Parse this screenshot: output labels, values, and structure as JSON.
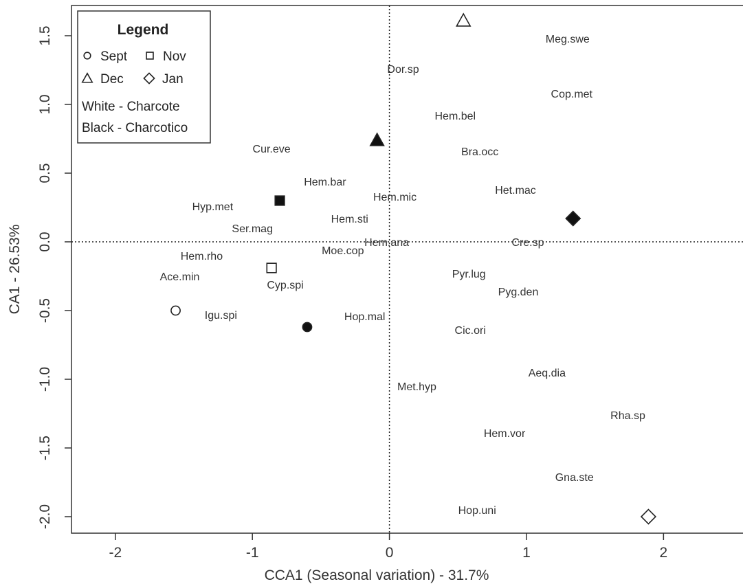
{
  "chart_data": {
    "type": "scatter",
    "xlabel": "CCA1 (Seasonal variation) - 31.7%",
    "ylabel": "CA1 - 26.53%",
    "xlim": [
      -2.32,
      2.58
    ],
    "ylim": [
      -2.12,
      1.72
    ],
    "x_ticks": [
      "-2",
      "-1",
      "0",
      "1",
      "2"
    ],
    "y_ticks": [
      "-2.0",
      "-1.5",
      "-1.0",
      "-0.5",
      "0.0",
      "0.5",
      "1.0",
      "1.5"
    ],
    "reference_lines": {
      "x": 0,
      "y": 0,
      "style": "dotted"
    },
    "legend": {
      "title": "Legend",
      "position": "top-left",
      "entries": [
        {
          "label": "Sept",
          "shape": "circle"
        },
        {
          "label": "Nov",
          "shape": "square"
        },
        {
          "label": "Dec",
          "shape": "triangle"
        },
        {
          "label": "Jan",
          "shape": "diamond"
        }
      ],
      "notes": [
        "White - Charcote",
        "Black - Charcotico"
      ]
    },
    "colors": {
      "white_fill": "#ffffff",
      "black_fill": "#111111",
      "stroke": "#222222"
    },
    "sites": [
      {
        "month": "Sept",
        "site": "Charcote",
        "shape": "circle",
        "fill": "white",
        "x": -1.56,
        "y": -0.5
      },
      {
        "month": "Sept",
        "site": "Charcotico",
        "shape": "circle",
        "fill": "black",
        "x": -0.6,
        "y": -0.62
      },
      {
        "month": "Nov",
        "site": "Charcote",
        "shape": "square",
        "fill": "white",
        "x": -0.86,
        "y": -0.19
      },
      {
        "month": "Nov",
        "site": "Charcotico",
        "shape": "square",
        "fill": "black",
        "x": -0.8,
        "y": 0.3
      },
      {
        "month": "Dec",
        "site": "Charcote",
        "shape": "triangle",
        "fill": "white",
        "x": 0.54,
        "y": 1.61
      },
      {
        "month": "Dec",
        "site": "Charcotico",
        "shape": "triangle",
        "fill": "black",
        "x": -0.09,
        "y": 0.74
      },
      {
        "month": "Jan",
        "site": "Charcote",
        "shape": "diamond",
        "fill": "white",
        "x": 1.89,
        "y": -2.0
      },
      {
        "month": "Jan",
        "site": "Charcotico",
        "shape": "diamond",
        "fill": "black",
        "x": 1.34,
        "y": 0.17
      }
    ],
    "species": [
      {
        "label": "Meg.swe",
        "x": 1.3,
        "y": 1.47
      },
      {
        "label": "Dor.sp",
        "x": 0.1,
        "y": 1.25
      },
      {
        "label": "Cop.met",
        "x": 1.33,
        "y": 1.07
      },
      {
        "label": "Hem.bel",
        "x": 0.48,
        "y": 0.91
      },
      {
        "label": "Cur.eve",
        "x": -0.86,
        "y": 0.67
      },
      {
        "label": "Bra.occ",
        "x": 0.66,
        "y": 0.65
      },
      {
        "label": "Hem.bar",
        "x": -0.47,
        "y": 0.43
      },
      {
        "label": "Het.mac",
        "x": 0.92,
        "y": 0.37
      },
      {
        "label": "Hem.mic",
        "x": 0.04,
        "y": 0.32
      },
      {
        "label": "Hyp.met",
        "x": -1.29,
        "y": 0.25
      },
      {
        "label": "Hem.sti",
        "x": -0.29,
        "y": 0.16
      },
      {
        "label": "Ser.mag",
        "x": -1.0,
        "y": 0.09
      },
      {
        "label": "Hem.ana",
        "x": -0.02,
        "y": -0.01
      },
      {
        "label": "Cre.sp",
        "x": 1.01,
        "y": -0.01
      },
      {
        "label": "Moe.cop",
        "x": -0.34,
        "y": -0.07
      },
      {
        "label": "Hem.rho",
        "x": -1.37,
        "y": -0.11
      },
      {
        "label": "Ace.min",
        "x": -1.53,
        "y": -0.26
      },
      {
        "label": "Pyr.lug",
        "x": 0.58,
        "y": -0.24
      },
      {
        "label": "Cyp.spi",
        "x": -0.76,
        "y": -0.32
      },
      {
        "label": "Pyg.den",
        "x": 0.94,
        "y": -0.37
      },
      {
        "label": "Igu.spi",
        "x": -1.23,
        "y": -0.54
      },
      {
        "label": "Hop.mal",
        "x": -0.18,
        "y": -0.55
      },
      {
        "label": "Cic.ori",
        "x": 0.59,
        "y": -0.65
      },
      {
        "label": "Aeq.dia",
        "x": 1.15,
        "y": -0.96
      },
      {
        "label": "Met.hyp",
        "x": 0.2,
        "y": -1.06
      },
      {
        "label": "Rha.sp",
        "x": 1.74,
        "y": -1.27
      },
      {
        "label": "Hem.vor",
        "x": 0.84,
        "y": -1.4
      },
      {
        "label": "Gna.ste",
        "x": 1.35,
        "y": -1.72
      },
      {
        "label": "Hop.uni",
        "x": 0.64,
        "y": -1.96
      }
    ]
  }
}
